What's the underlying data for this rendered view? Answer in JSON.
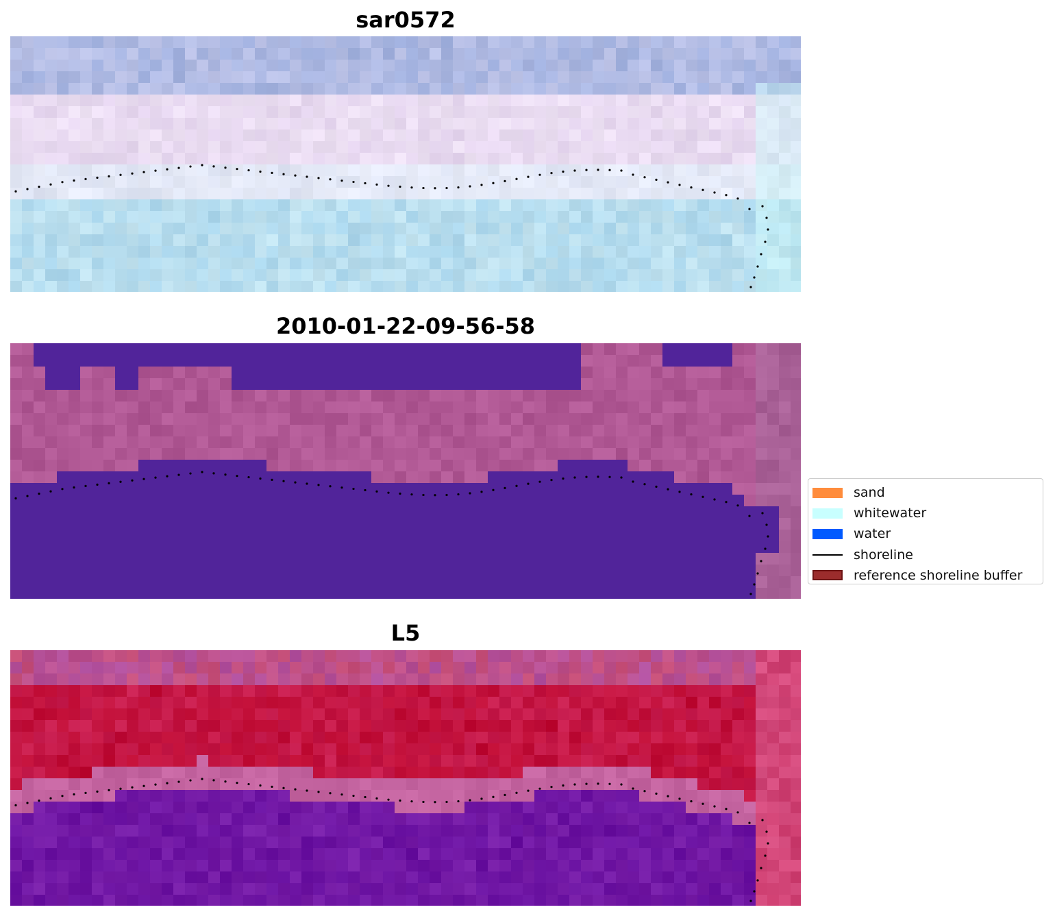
{
  "panels": [
    {
      "id": "rgb",
      "title": "sar0572"
    },
    {
      "id": "classified",
      "title": "2010-01-22-09-56-58"
    },
    {
      "id": "index",
      "title": "L5"
    }
  ],
  "legend": {
    "items": [
      {
        "label": "sand",
        "kind": "patch",
        "color": "#ff8c3c"
      },
      {
        "label": "whitewater",
        "kind": "patch",
        "color": "#c8ffff"
      },
      {
        "label": "water",
        "kind": "patch",
        "color": "#005aff"
      },
      {
        "label": "shoreline",
        "kind": "line",
        "color": "#000000"
      },
      {
        "label": "reference shoreline buffer",
        "kind": "patch",
        "color": "#9b2c2c",
        "edge": "#6e1414"
      }
    ]
  },
  "colors": {
    "water_mask": "#51249a",
    "shoreline_points": "#000000"
  }
}
